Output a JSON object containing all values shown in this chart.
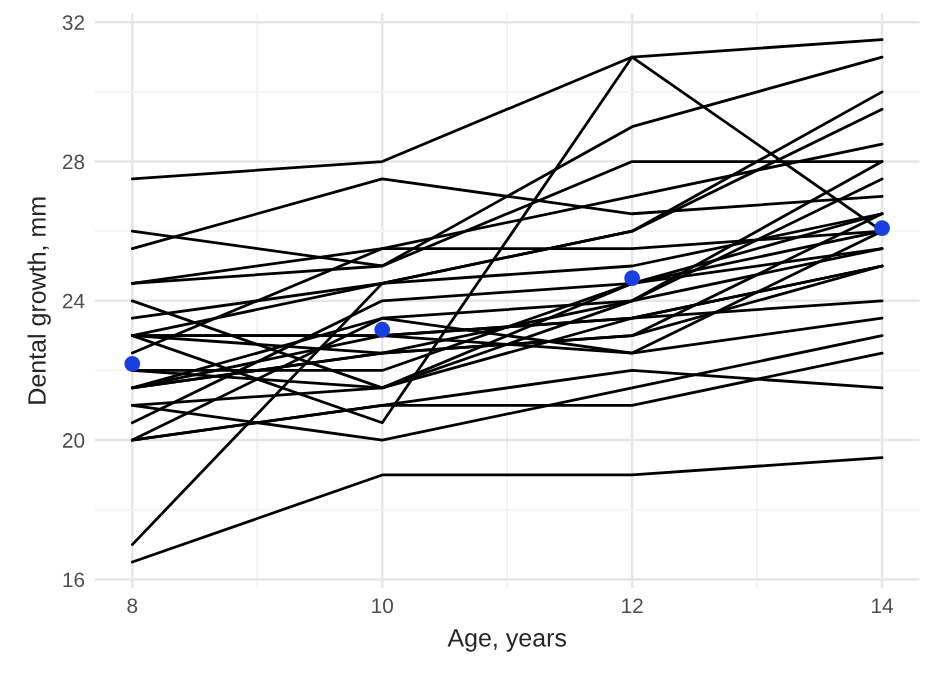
{
  "chart_data": {
    "type": "line",
    "xlabel": "Age, years",
    "ylabel": "Dental growth, mm",
    "x": [
      8,
      10,
      12,
      14
    ],
    "xlim": [
      7.7,
      14.3
    ],
    "xticks": [
      8,
      10,
      12,
      14
    ],
    "ylim": [
      15.75,
      32.25
    ],
    "yticks": [
      16,
      20,
      24,
      28,
      32
    ],
    "grid": true,
    "marker": "none",
    "series": [
      {
        "color": "#000000",
        "values": [
          26,
          25,
          29,
          31
        ]
      },
      {
        "color": "#000000",
        "values": [
          21.5,
          22.5,
          23,
          26.5
        ]
      },
      {
        "color": "#000000",
        "values": [
          23,
          22.5,
          24,
          27.5
        ]
      },
      {
        "color": "#000000",
        "values": [
          25.5,
          27.5,
          26.5,
          27
        ]
      },
      {
        "color": "#000000",
        "values": [
          20,
          23.5,
          22.5,
          26
        ]
      },
      {
        "color": "#000000",
        "values": [
          24.5,
          25.5,
          27,
          28.5
        ]
      },
      {
        "color": "#000000",
        "values": [
          22,
          22,
          24.5,
          26.5
        ]
      },
      {
        "color": "#000000",
        "values": [
          24,
          21.5,
          24.5,
          25.5
        ]
      },
      {
        "color": "#000000",
        "values": [
          23,
          20.5,
          31,
          26
        ]
      },
      {
        "color": "#000000",
        "values": [
          27.5,
          28,
          31,
          31.5
        ]
      },
      {
        "color": "#000000",
        "values": [
          23,
          23,
          23.5,
          25
        ]
      },
      {
        "color": "#000000",
        "values": [
          21.5,
          23.5,
          24,
          28
        ]
      },
      {
        "color": "#000000",
        "values": [
          17,
          24.5,
          26,
          29.5
        ]
      },
      {
        "color": "#000000",
        "values": [
          22.5,
          25.5,
          25.5,
          26
        ]
      },
      {
        "color": "#000000",
        "values": [
          23,
          24.5,
          26,
          30
        ]
      },
      {
        "color": "#000000",
        "values": [
          22,
          21.5,
          23.5,
          25
        ]
      },
      {
        "color": "#000000",
        "values": [
          21,
          20,
          21.5,
          23
        ]
      },
      {
        "color": "#000000",
        "values": [
          21,
          21.5,
          24,
          25.5
        ]
      },
      {
        "color": "#000000",
        "values": [
          20.5,
          24,
          24.5,
          26
        ]
      },
      {
        "color": "#000000",
        "values": [
          23.5,
          24.5,
          25,
          26.5
        ]
      },
      {
        "color": "#000000",
        "values": [
          21.5,
          23,
          22.5,
          23.5
        ]
      },
      {
        "color": "#000000",
        "values": [
          20,
          21,
          21,
          22.5
        ]
      },
      {
        "color": "#000000",
        "values": [
          21.5,
          22.5,
          23,
          25
        ]
      },
      {
        "color": "#000000",
        "values": [
          23,
          23,
          23.5,
          24
        ]
      },
      {
        "color": "#000000",
        "values": [
          20,
          21,
          22,
          21.5
        ]
      },
      {
        "color": "#000000",
        "values": [
          16.5,
          19,
          19,
          19.5
        ]
      },
      {
        "color": "#000000",
        "values": [
          24.5,
          25,
          28,
          28
        ]
      },
      {
        "type": "scatter",
        "marker": "circle",
        "color": "#1a3fe0",
        "values": [
          22.19,
          23.17,
          24.65,
          26.09
        ]
      }
    ]
  }
}
